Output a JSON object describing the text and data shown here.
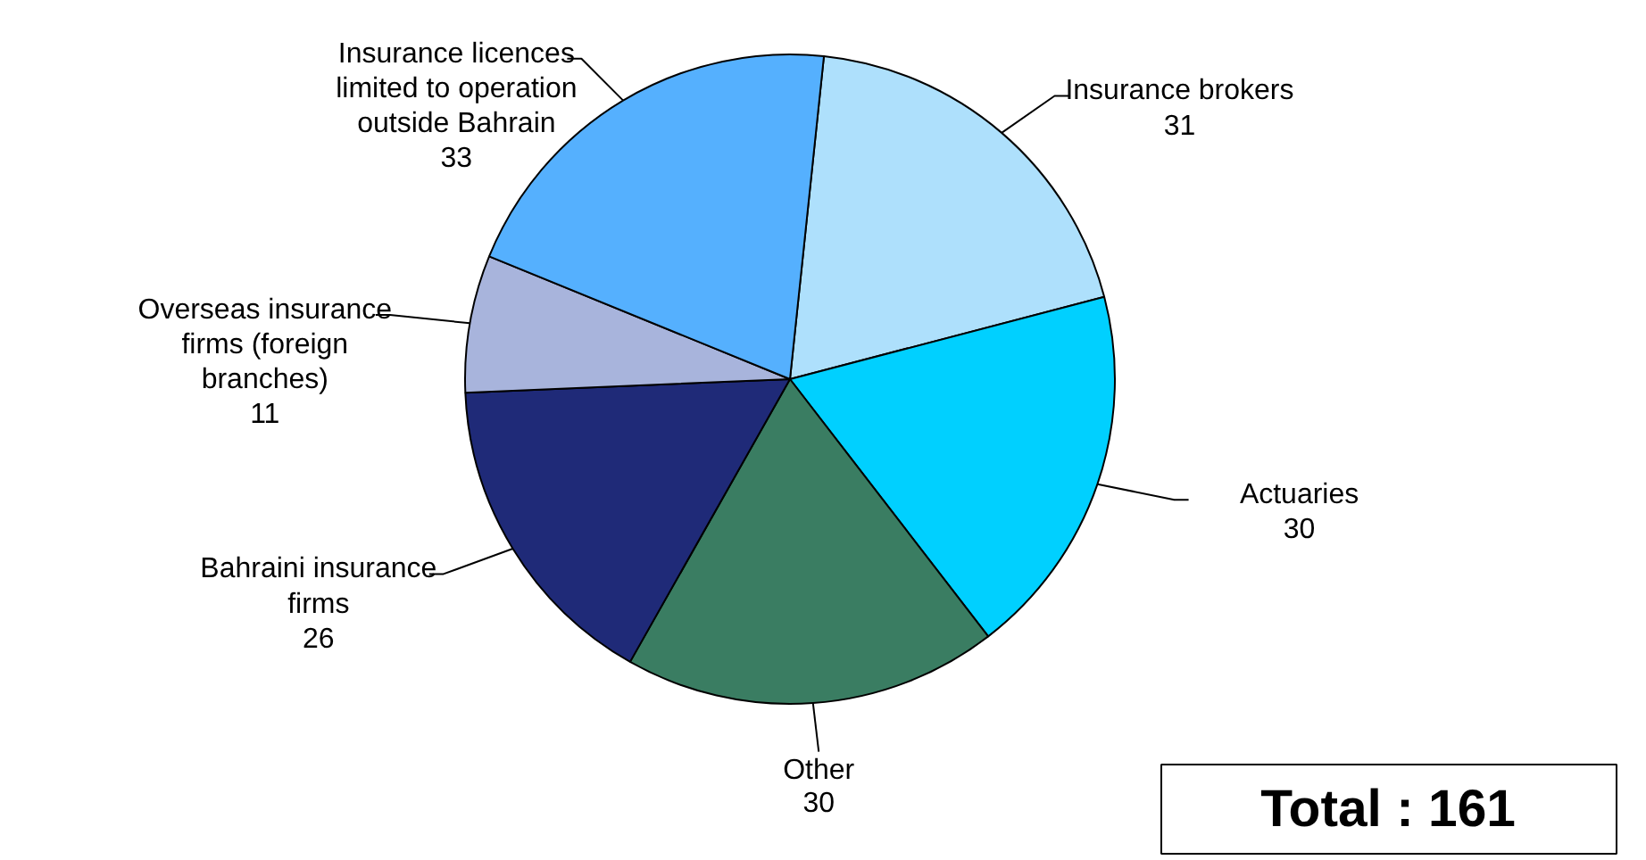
{
  "chart_data": {
    "type": "pie",
    "categories": [
      "Insurance brokers",
      "Actuaries",
      "Other",
      "Bahraini insurance firms",
      "Overseas insurance firms (foreign branches)",
      "Insurance licences limited to operation outside Bahrain"
    ],
    "values": [
      31,
      30,
      30,
      26,
      11,
      33
    ],
    "colors": [
      "#aee0fc",
      "#00d0ff",
      "#3a7d62",
      "#1f2a78",
      "#a8b4dc",
      "#55b0fe"
    ],
    "data_labels": true,
    "annotations": [
      "Total : 161"
    ]
  }
}
